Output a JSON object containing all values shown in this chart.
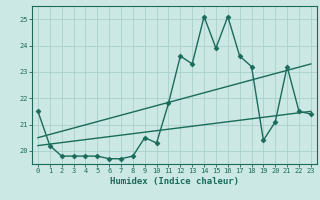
{
  "xlabel": "Humidex (Indice chaleur)",
  "ylabel": "",
  "bg_color": "#cce8e4",
  "grid_color": "#aacfcb",
  "line_color": "#1a6b5a",
  "xlim": [
    -0.5,
    23.5
  ],
  "ylim": [
    19.5,
    25.5
  ],
  "yticks": [
    20,
    21,
    22,
    23,
    24,
    25
  ],
  "xticks": [
    0,
    1,
    2,
    3,
    4,
    5,
    6,
    7,
    8,
    9,
    10,
    11,
    12,
    13,
    14,
    15,
    16,
    17,
    18,
    19,
    20,
    21,
    22,
    23
  ],
  "series1_x": [
    0,
    1,
    2,
    3,
    4,
    5,
    6,
    7,
    8,
    9,
    10,
    11,
    12,
    13,
    14,
    15,
    16,
    17,
    18,
    19,
    20,
    21,
    22,
    23
  ],
  "series1_y": [
    21.5,
    20.2,
    19.8,
    19.8,
    19.8,
    19.8,
    19.7,
    19.7,
    19.8,
    20.5,
    20.3,
    21.8,
    23.6,
    23.3,
    25.1,
    23.9,
    25.1,
    23.6,
    23.2,
    20.4,
    21.1,
    23.2,
    21.5,
    21.4
  ],
  "series2_x": [
    0,
    23
  ],
  "series2_y": [
    20.5,
    23.3
  ],
  "series3_x": [
    0,
    23
  ],
  "series3_y": [
    20.2,
    21.5
  ],
  "marker": "D",
  "markersize": 2.5,
  "linewidth": 1.0
}
